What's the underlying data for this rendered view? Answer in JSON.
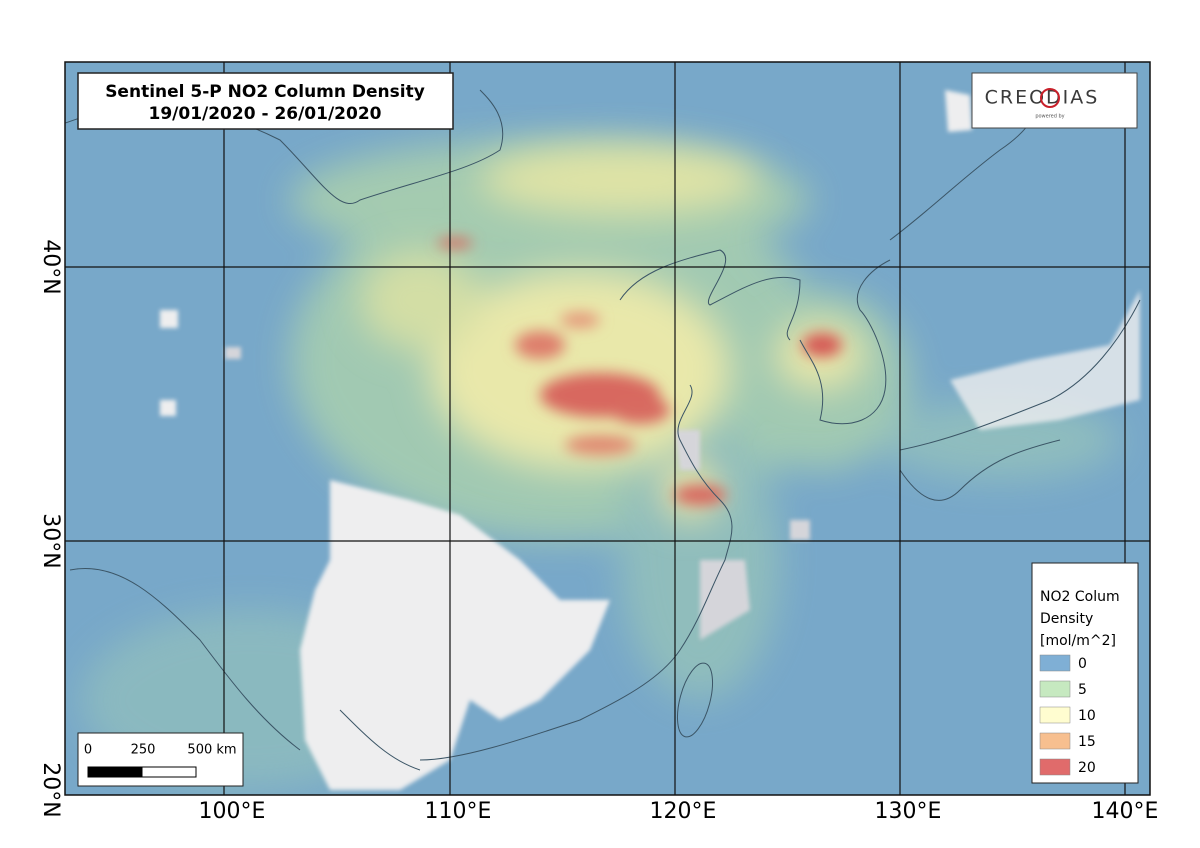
{
  "title": {
    "lines": [
      "Sentinel 5-P NO2 Column Density",
      "19/01/2020 - 26/01/2020"
    ]
  },
  "logo": {
    "brand": "CREODIAS",
    "tagline": "powered by"
  },
  "graticule": {
    "longitudes": [
      "100°E",
      "110°E",
      "120°E",
      "130°E",
      "140°E"
    ],
    "latitudes": [
      "40°N",
      "30°N",
      "20°N"
    ]
  },
  "legend": {
    "title_lines": [
      "NO2 Colum",
      "Density",
      "[mol/m^2]"
    ],
    "items": [
      {
        "label": "0",
        "color": "#7fafd5"
      },
      {
        "label": "5",
        "color": "#c6e9c0"
      },
      {
        "label": "10",
        "color": "#fffdd0"
      },
      {
        "label": "15",
        "color": "#f7bf8f"
      },
      {
        "label": "20",
        "color": "#e06b6b"
      }
    ]
  },
  "scale_bar": {
    "labels": [
      "0",
      "250",
      "500 km"
    ]
  }
}
